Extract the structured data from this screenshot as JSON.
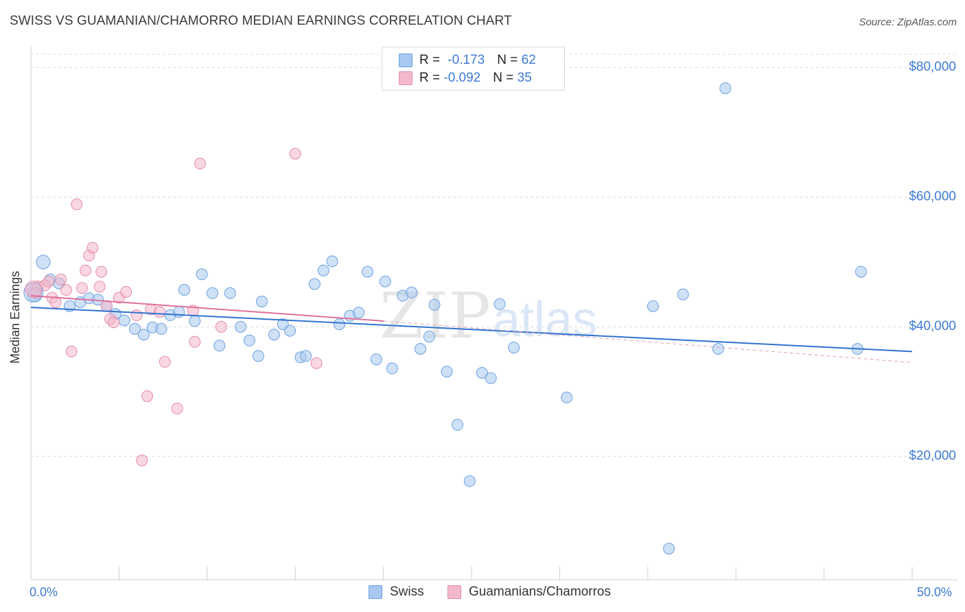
{
  "header": {
    "title": "SWISS VS GUAMANIAN/CHAMORRO MEDIAN EARNINGS CORRELATION CHART",
    "source": "Source: ZipAtlas.com"
  },
  "watermark": {
    "zip": "ZIP",
    "atlas": "atlas"
  },
  "legend": {
    "rows": [
      {
        "r_label": "R = ",
        "r_value": "-0.173",
        "n_label": "N = ",
        "n_value": "62",
        "color": "#a7c8f0"
      },
      {
        "r_label": "R = ",
        "r_value": "-0.092",
        "n_label": "N = ",
        "n_value": "35",
        "color": "#f4b8cb"
      }
    ]
  },
  "bottom_legend": {
    "swiss": "Swiss",
    "guam": "Guamanians/Chamorros"
  },
  "chart_data": {
    "type": "scatter",
    "title": "SWISS VS GUAMANIAN/CHAMORRO MEDIAN EARNINGS CORRELATION CHART",
    "ylabel": "Median Earnings",
    "xlabel": "",
    "xlim": [
      0,
      50
    ],
    "ylim": [
      1000,
      83000
    ],
    "x_tick_labels": [
      "0.0%",
      "50.0%"
    ],
    "y_ticks": [
      20000,
      40000,
      60000,
      80000
    ],
    "y_tick_labels": [
      "$20,000",
      "$40,000",
      "$60,000",
      "$80,000"
    ],
    "grid": true,
    "series": [
      {
        "name": "Swiss",
        "color": "#a7c8f0",
        "stroke": "#6a9fde",
        "R": -0.173,
        "N": 62,
        "trend": {
          "x": [
            0,
            50
          ],
          "y": [
            43000,
            36200
          ]
        },
        "points": [
          [
            0.2,
            45000
          ],
          [
            0.7,
            50000
          ],
          [
            1.1,
            47300
          ],
          [
            1.6,
            46700
          ],
          [
            2.2,
            43200
          ],
          [
            2.8,
            43800
          ],
          [
            3.3,
            44400
          ],
          [
            3.8,
            44200
          ],
          [
            4.3,
            43200
          ],
          [
            4.8,
            42000
          ],
          [
            5.3,
            41000
          ],
          [
            5.9,
            39700
          ],
          [
            6.4,
            38800
          ],
          [
            6.9,
            39900
          ],
          [
            7.4,
            39700
          ],
          [
            7.9,
            41800
          ],
          [
            8.4,
            42300
          ],
          [
            8.7,
            45700
          ],
          [
            9.3,
            40900
          ],
          [
            9.7,
            48100
          ],
          [
            10.3,
            45200
          ],
          [
            10.7,
            37100
          ],
          [
            11.3,
            45200
          ],
          [
            11.9,
            40000
          ],
          [
            12.4,
            37900
          ],
          [
            12.9,
            35500
          ],
          [
            13.1,
            43900
          ],
          [
            13.8,
            38800
          ],
          [
            14.3,
            40400
          ],
          [
            14.7,
            39400
          ],
          [
            15.3,
            35300
          ],
          [
            15.6,
            35500
          ],
          [
            16.1,
            46600
          ],
          [
            16.6,
            48700
          ],
          [
            17.1,
            50100
          ],
          [
            17.5,
            40400
          ],
          [
            18.1,
            41700
          ],
          [
            18.6,
            42200
          ],
          [
            19.1,
            48500
          ],
          [
            19.6,
            35000
          ],
          [
            20.1,
            47000
          ],
          [
            20.5,
            33600
          ],
          [
            21.1,
            44800
          ],
          [
            21.6,
            45300
          ],
          [
            22.1,
            36600
          ],
          [
            22.6,
            38500
          ],
          [
            22.9,
            43400
          ],
          [
            23.6,
            33100
          ],
          [
            24.2,
            24900
          ],
          [
            24.9,
            16200
          ],
          [
            25.6,
            32900
          ],
          [
            26.1,
            32100
          ],
          [
            26.6,
            43500
          ],
          [
            27.4,
            36800
          ],
          [
            30.4,
            29100
          ],
          [
            35.3,
            43200
          ],
          [
            36.2,
            5800
          ],
          [
            37.0,
            45000
          ],
          [
            39.4,
            76800
          ],
          [
            39.0,
            36600
          ],
          [
            46.9,
            36600
          ],
          [
            47.1,
            48500
          ]
        ]
      },
      {
        "name": "Guamanians/Chamorros",
        "color": "#f4b8cb",
        "stroke": "#e58aa9",
        "R": -0.092,
        "N": 35,
        "trend": {
          "x": [
            0,
            20
          ],
          "y": [
            44800,
            40900
          ]
        },
        "trend_dashed": {
          "x": [
            20,
            50
          ],
          "y": [
            40900,
            34500
          ]
        },
        "points": [
          [
            0.1,
            45700
          ],
          [
            0.4,
            46200
          ],
          [
            0.8,
            46400
          ],
          [
            1.2,
            44500
          ],
          [
            1.4,
            43800
          ],
          [
            1.7,
            47300
          ],
          [
            2.0,
            45700
          ],
          [
            2.3,
            36200
          ],
          [
            2.6,
            58900
          ],
          [
            2.9,
            46000
          ],
          [
            3.1,
            48700
          ],
          [
            3.3,
            51000
          ],
          [
            3.5,
            52200
          ],
          [
            3.9,
            46200
          ],
          [
            4.0,
            48500
          ],
          [
            4.3,
            43200
          ],
          [
            4.5,
            41200
          ],
          [
            4.7,
            40700
          ],
          [
            5.0,
            44500
          ],
          [
            5.4,
            45400
          ],
          [
            6.0,
            41800
          ],
          [
            6.3,
            19400
          ],
          [
            6.6,
            29300
          ],
          [
            6.8,
            42700
          ],
          [
            7.3,
            42300
          ],
          [
            7.6,
            34600
          ],
          [
            8.3,
            27400
          ],
          [
            9.2,
            42500
          ],
          [
            9.3,
            37700
          ],
          [
            9.6,
            65200
          ],
          [
            10.8,
            40000
          ],
          [
            15.0,
            66700
          ],
          [
            16.2,
            34400
          ],
          [
            0.3,
            45200
          ],
          [
            1.0,
            47000
          ]
        ]
      }
    ]
  }
}
